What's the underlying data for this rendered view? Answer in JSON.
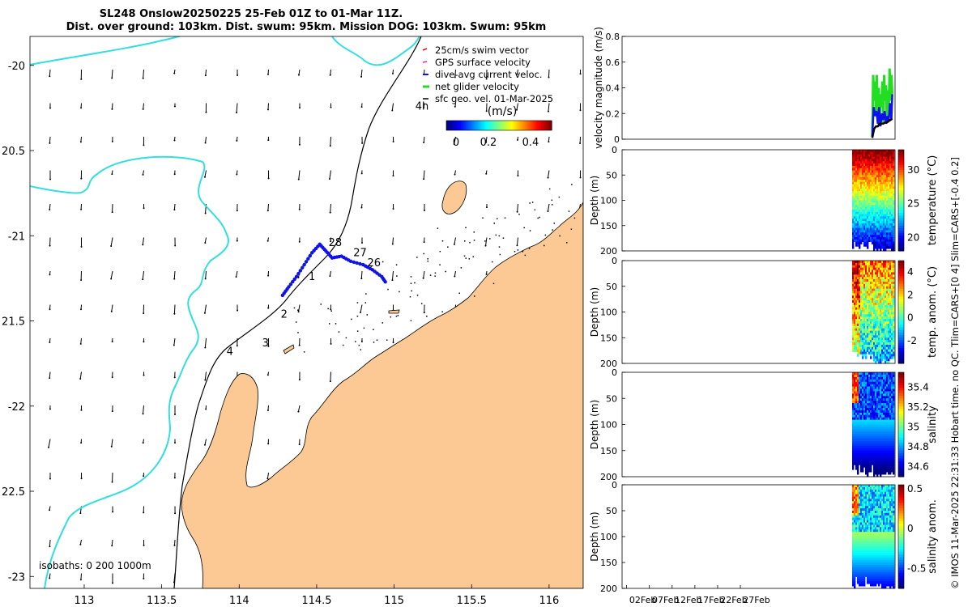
{
  "title": {
    "line1": "SL248 Onslow20250225 25-Feb 01Z to 01-Mar 11Z.",
    "line2": "Dist. over ground: 103km. Dist. swum: 95km. Mission DOG: 103km. Swum: 95km"
  },
  "colors": {
    "land": "#fcc994",
    "coastline_cyan": "#33dede",
    "isobath": "#000000",
    "track": "#f0c419",
    "net_velocity": "#22dd22",
    "dive_avg": "#1010ee",
    "sfc_geo": "#000000",
    "gps": "#e020e0",
    "swim": "#dd1111"
  },
  "chart_data": [
    {
      "type": "map",
      "name": "glider-track-map",
      "xlim": [
        112.65,
        116.22
      ],
      "ylim": [
        -23.07,
        -19.83
      ],
      "x_ticks": [
        113,
        113.5,
        114,
        114.5,
        115,
        115.5,
        116
      ],
      "x_tick_labels": [
        "113",
        "113.5",
        "114",
        "114.5",
        "115",
        "115.5",
        "116"
      ],
      "y_ticks": [
        -20,
        -20.5,
        -21,
        -21.5,
        -22,
        -22.5,
        -23
      ],
      "y_tick_labels": [
        "-20",
        "20.5",
        "-21",
        "21.5",
        "-22",
        "22.5",
        "-23"
      ],
      "legend": [
        {
          "label": "25cm/s swim vector",
          "color": "#dd1111"
        },
        {
          "label": "GPS surface velocity",
          "color": "#e020e0"
        },
        {
          "label": "dive-avg current veloc.",
          "color": "#1010ee"
        },
        {
          "label": "net glider velocity",
          "color": "#22dd22"
        },
        {
          "label": "sfc geo. vel. 01-Mar-2025",
          "color": "#000000"
        }
      ],
      "legend_placement": "top-right",
      "colorbar": {
        "label": "(m/s)",
        "ticks": [
          "0",
          "0.2",
          "0.4"
        ],
        "tick_values": [
          0,
          0.2,
          0.4
        ],
        "range": [
          0,
          0.5
        ]
      },
      "isobath_note": "isobaths: 0   200  1000m",
      "day_labels": [
        {
          "text": "28",
          "lon": 114.62,
          "lat": -21.06
        },
        {
          "text": "27",
          "lon": 114.78,
          "lat": -21.12
        },
        {
          "text": "26",
          "lon": 114.87,
          "lat": -21.18
        },
        {
          "text": "1",
          "lon": 114.47,
          "lat": -21.26
        },
        {
          "text": "2",
          "lon": 114.29,
          "lat": -21.48
        },
        {
          "text": "3",
          "lon": 114.17,
          "lat": -21.65
        },
        {
          "text": "4",
          "lon": 113.94,
          "lat": -21.7
        },
        {
          "text": "4h",
          "lon": 115.18,
          "lat": -20.26
        }
      ],
      "track": [
        [
          114.28,
          -21.35
        ],
        [
          114.32,
          -21.3
        ],
        [
          114.37,
          -21.24
        ],
        [
          114.42,
          -21.17
        ],
        [
          114.47,
          -21.1
        ],
        [
          114.52,
          -21.05
        ],
        [
          114.56,
          -21.09
        ],
        [
          114.6,
          -21.13
        ],
        [
          114.66,
          -21.12
        ],
        [
          114.72,
          -21.15
        ],
        [
          114.8,
          -21.17
        ],
        [
          114.86,
          -21.2
        ],
        [
          114.92,
          -21.24
        ],
        [
          114.95,
          -21.28
        ]
      ]
    },
    {
      "type": "line",
      "name": "velocity-panel",
      "ylabel": "velocity magnitude (m/s)",
      "ylim": [
        0,
        0.8
      ],
      "y_ticks": [
        0,
        0.2,
        0.4,
        0.6,
        0.8
      ],
      "y_tick_labels": [
        "0",
        "0.2",
        "0.4",
        "0.6",
        "0.8"
      ],
      "series": [
        {
          "color": "#22dd22",
          "x": [
            55.0,
            55.2,
            55.4,
            55.6,
            55.8,
            56.0,
            56.2,
            56.4,
            56.6,
            56.8,
            57.0,
            57.2,
            57.4,
            57.6,
            57.8,
            58.0,
            58.2,
            58.4,
            58.6,
            58.8,
            59.0,
            59.2,
            59.4
          ],
          "values": [
            0.02,
            0.5,
            0.3,
            0.45,
            0.2,
            0.5,
            0.15,
            0.4,
            0.1,
            0.35,
            0.25,
            0.45,
            0.12,
            0.5,
            0.3,
            0.42,
            0.15,
            0.38,
            0.2,
            0.55,
            0.3,
            0.5,
            0.35
          ]
        },
        {
          "color": "#1010ee",
          "x": [
            55.0,
            55.3,
            55.6,
            55.9,
            56.2,
            56.5,
            56.8,
            57.1,
            57.4,
            57.7,
            58.0,
            58.3,
            58.6,
            58.9,
            59.2,
            59.4
          ],
          "values": [
            0.02,
            0.25,
            0.18,
            0.22,
            0.12,
            0.25,
            0.1,
            0.2,
            0.15,
            0.22,
            0.12,
            0.18,
            0.14,
            0.28,
            0.15,
            0.35
          ]
        },
        {
          "color": "#000000",
          "x": [
            55.0,
            55.4,
            55.8,
            56.2,
            56.6,
            57.0,
            57.4,
            57.8,
            58.2,
            58.6,
            59.0,
            59.4
          ],
          "values": [
            0.01,
            0.08,
            0.1,
            0.1,
            0.12,
            0.12,
            0.12,
            0.13,
            0.13,
            0.14,
            0.15,
            0.16
          ]
        }
      ]
    },
    {
      "type": "heatmap",
      "name": "temperature-panel",
      "ylabel": "Depth (m)",
      "cbar_label": "temperature (°C)",
      "ylim": [
        200,
        0
      ],
      "y_ticks": [
        0,
        50,
        100,
        150,
        200
      ],
      "y_tick_labels": [
        "0",
        "50",
        "100",
        "150",
        "200"
      ],
      "cbar_range": [
        18,
        33
      ],
      "cbar_ticks": [
        20,
        25,
        30
      ],
      "cbar_tick_labels": [
        "20",
        "25",
        "30"
      ]
    },
    {
      "type": "heatmap",
      "name": "temp-anomaly-panel",
      "ylabel": "Depth (m)",
      "cbar_label": "temp. anom. (°C)",
      "ylim": [
        200,
        0
      ],
      "y_ticks": [
        0,
        50,
        100,
        150,
        200
      ],
      "y_tick_labels": [
        "0",
        "50",
        "100",
        "150",
        "200"
      ],
      "cbar_range": [
        -4,
        5
      ],
      "cbar_ticks": [
        4,
        2,
        0,
        -2
      ],
      "cbar_tick_labels": [
        "4",
        "2",
        "0",
        "-2"
      ]
    },
    {
      "type": "heatmap",
      "name": "salinity-panel",
      "ylabel": "Depth (m)",
      "cbar_label": "salinity",
      "ylim": [
        200,
        0
      ],
      "y_ticks": [
        0,
        50,
        100,
        150,
        200
      ],
      "y_tick_labels": [
        "0",
        "50",
        "100",
        "150",
        "200"
      ],
      "cbar_range": [
        34.5,
        35.55
      ],
      "cbar_ticks": [
        35.4,
        35.2,
        35,
        34.8,
        34.6
      ],
      "cbar_tick_labels": [
        "35.4",
        "35.2",
        "35",
        "34.8",
        "34.6"
      ]
    },
    {
      "type": "heatmap",
      "name": "salinity-anomaly-panel",
      "ylabel": "Depth (m)",
      "cbar_label": "salinity anom.",
      "ylim": [
        200,
        0
      ],
      "y_ticks": [
        0,
        50,
        100,
        150,
        200
      ],
      "y_tick_labels": [
        "0",
        "50",
        "100",
        "150",
        "200"
      ],
      "cbar_range": [
        -0.75,
        0.55
      ],
      "cbar_ticks": [
        0.5,
        0,
        -0.5
      ],
      "cbar_tick_labels": [
        "0.5",
        "0",
        "-0.5"
      ],
      "x_range": [
        0,
        60
      ],
      "x_ticks": [
        0,
        5,
        10,
        15,
        20,
        25
      ],
      "x_tick_labels": [
        "02Feb",
        "07Feb",
        "12Feb",
        "17Feb",
        "22Feb",
        "27Feb"
      ]
    }
  ],
  "footer_text": "© IMOS 11-Mar-2025 22:31:33 Hobart time. no QC. Tlim=CARS+[0 4] Slim=CARS+[-0.4 0.2]"
}
